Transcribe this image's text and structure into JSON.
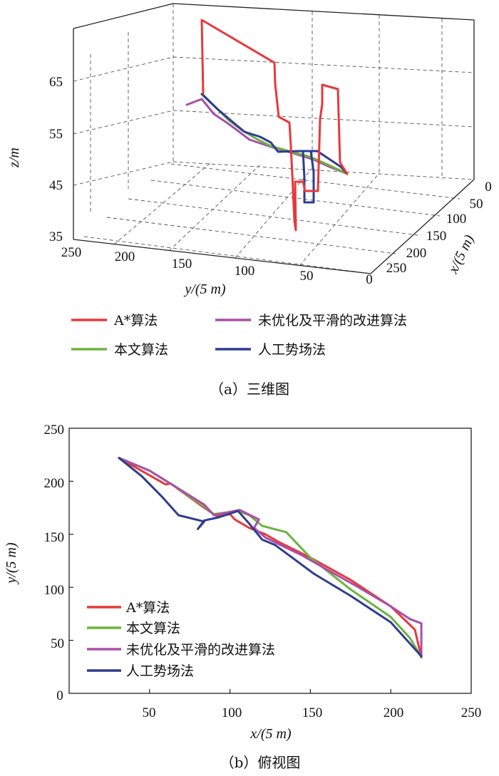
{
  "chart_data": [
    {
      "panel": "a",
      "type": "line",
      "caption": "（a）三维图",
      "zlabel": "z/m",
      "ylabel": "y/(5 m)",
      "xlabel": "x/(5 m)",
      "z_ticks": [
        "35",
        "45",
        "55",
        "65"
      ],
      "y_ticks": [
        "250",
        "200",
        "150",
        "100",
        "50"
      ],
      "x_ticks": [
        "0",
        "50",
        "100",
        "150",
        "200",
        "250",
        "0"
      ],
      "legend": [
        {
          "label": "A*算法",
          "color": "#e8383b"
        },
        {
          "label": "未优化及平滑的改进算法",
          "color": "#a94fa8"
        },
        {
          "label": "本文算法",
          "color": "#6db33f"
        },
        {
          "label": "人工势场法",
          "color": "#2e3d8f"
        }
      ]
    },
    {
      "panel": "b",
      "type": "line",
      "caption": "（b）俯视图",
      "xlabel": "x/(5 m)",
      "ylabel": "y/(5 m)",
      "xlim": [
        0,
        250
      ],
      "ylim": [
        0,
        250
      ],
      "x_ticks": [
        "0",
        "50",
        "100",
        "150",
        "200",
        "250"
      ],
      "y_ticks": [
        "50",
        "100",
        "150",
        "200",
        "250"
      ],
      "series": [
        {
          "name": "A*算法",
          "color": "#e8383b",
          "x": [
            31,
            60,
            63,
            84,
            92,
            100,
            103,
            112,
            122,
            130,
            150,
            175,
            200,
            215,
            219
          ],
          "y": [
            222,
            197,
            198,
            175,
            167,
            169,
            164,
            156,
            150,
            143,
            128,
            107,
            82,
            60,
            34
          ]
        },
        {
          "name": "本文算法",
          "color": "#6db33f",
          "x": [
            31,
            50,
            65,
            84,
            90,
            105,
            112,
            120,
            135,
            150,
            175,
            200,
            212,
            219
          ],
          "y": [
            222,
            210,
            196,
            176,
            169,
            172,
            168,
            158,
            152,
            128,
            98,
            72,
            52,
            34
          ]
        },
        {
          "name": "未优化及平滑的改进算法",
          "color": "#a94fa8",
          "x": [
            31,
            50,
            66,
            84,
            90,
            106,
            118,
            115,
            122,
            134,
            145,
            160,
            180,
            200,
            212,
            219,
            219
          ],
          "y": [
            222,
            210,
            195,
            178,
            168,
            173,
            164,
            156,
            147,
            138,
            130,
            117,
            100,
            82,
            70,
            66,
            34
          ]
        },
        {
          "name": "人工势场法",
          "color": "#2e3d8f",
          "x": [
            31,
            45,
            58,
            68,
            84,
            80,
            84,
            93,
            105,
            112,
            120,
            128,
            152,
            175,
            200,
            219
          ],
          "y": [
            222,
            205,
            185,
            168,
            162,
            155,
            163,
            166,
            172,
            160,
            145,
            140,
            113,
            92,
            67,
            35
          ]
        }
      ]
    }
  ]
}
